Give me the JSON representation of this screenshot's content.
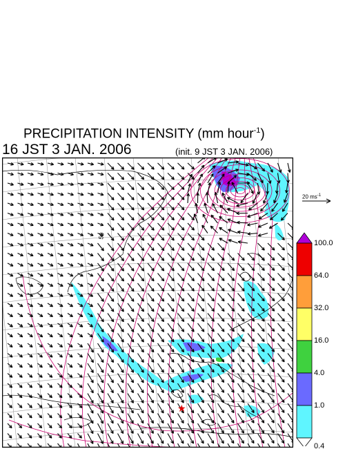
{
  "title": {
    "main": "PRECIPITATION INTENSITY (mm hour",
    "sup": "-1",
    "close": ")"
  },
  "valid_time": "16 JST 3 JAN. 2006",
  "init_time": "(init. 9 JST 3 JAN. 2006)",
  "reference_vector": {
    "label": "20 ms",
    "sup": "-1"
  },
  "map": {
    "contour_label": "50",
    "marker": "red-star",
    "colors": {
      "contour": "#c8006e",
      "wind": "#000000",
      "coast": "#000000",
      "grid": "#9a9a9a"
    }
  },
  "colorbar": {
    "levels": [
      "0.4",
      "1.0",
      "4.0",
      "16.0",
      "32.0",
      "64.0",
      "100.0"
    ],
    "colors": [
      "#5ff5ff",
      "#6a6aff",
      "#3fd13f",
      "#ffff66",
      "#ff9e3a",
      "#ee0000",
      "#b000d8"
    ]
  }
}
